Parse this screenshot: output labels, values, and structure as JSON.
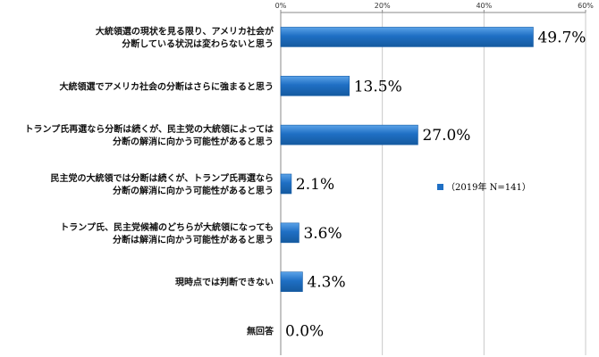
{
  "chart_data": {
    "type": "bar",
    "orientation": "horizontal",
    "categories": [
      [
        "大統領選の現状を見る限り、アメリカ社会が",
        "分断している状況は変わらないと思う"
      ],
      [
        "大統領選でアメリカ社会の分断はさらに強まると思う"
      ],
      [
        "トランプ氏再選なら分断は続くが、民主党の大統領によっては",
        "分断の解消に向かう可能性があると思う"
      ],
      [
        "民主党の大統領では分断は続くが、トランプ氏再選なら",
        "分断の解消に向かう可能性があると思う"
      ],
      [
        "トランプ氏、民主党候補のどちらが大統領になっても",
        "分断は解消に向かう可能性があると思う"
      ],
      [
        "現時点では判断できない"
      ],
      [
        "無回答"
      ]
    ],
    "series": [
      {
        "name": "（2019年 N=141）",
        "values": [
          49.7,
          13.5,
          27.0,
          2.1,
          3.6,
          4.3,
          0.0
        ],
        "labels": [
          "49.7%",
          "13.5%",
          "27.0%",
          "2.1%",
          "3.6%",
          "4.3%",
          "0.0%"
        ]
      }
    ],
    "xlim": [
      0,
      60
    ],
    "xticks": [
      0,
      20,
      40,
      60
    ],
    "xtick_labels": [
      "0%",
      "20%",
      "40%",
      "60%"
    ],
    "xaxis_position": "top",
    "grid": true,
    "legend_position": "right",
    "colors": {
      "bar": "#1f6fc4",
      "bar_light": "#5ba3e8",
      "grid": "#c8c8c8"
    }
  }
}
